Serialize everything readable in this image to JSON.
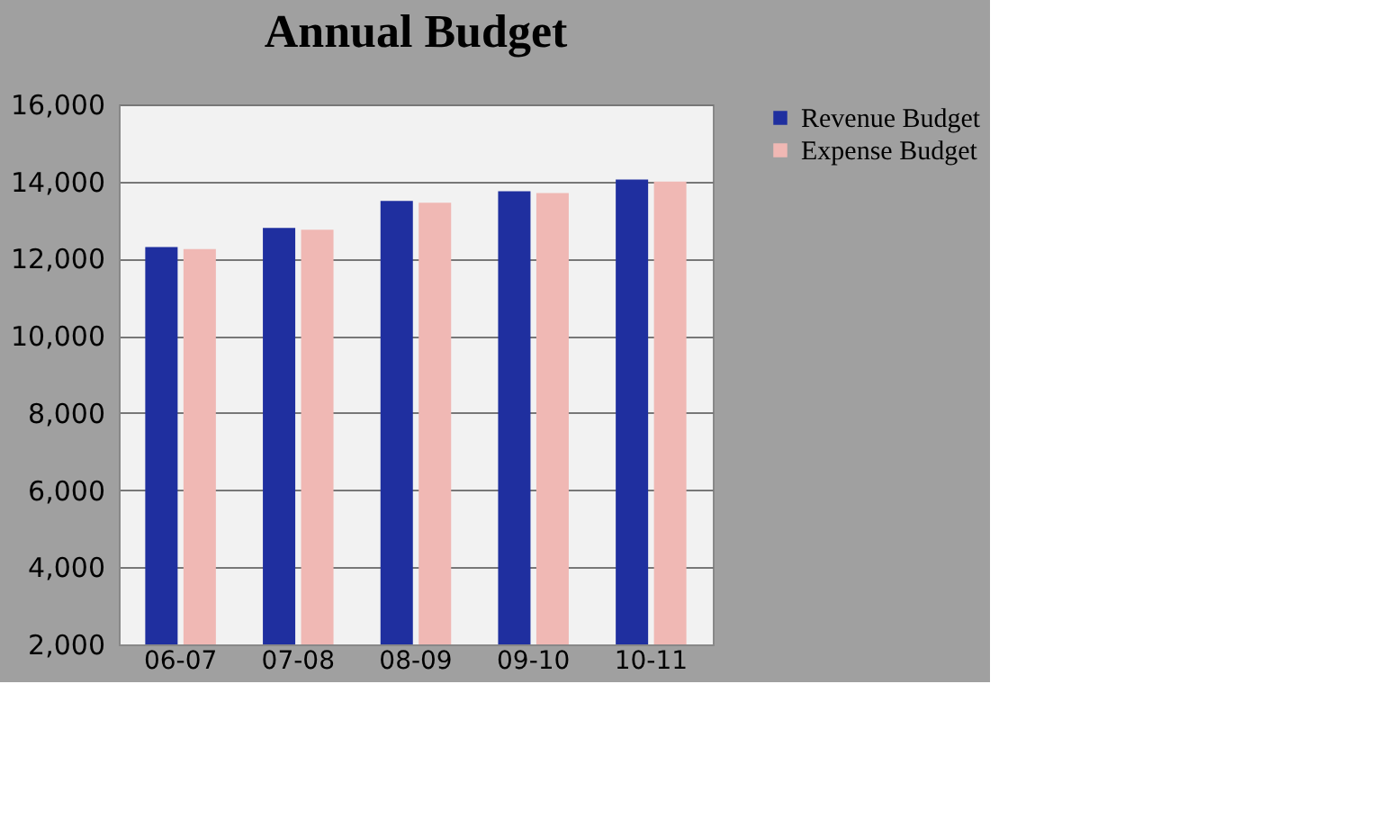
{
  "chart_data": {
    "type": "bar",
    "title": "Annual Budget",
    "categories": [
      "06-07",
      "07-08",
      "08-09",
      "09-10",
      "10-11"
    ],
    "series": [
      {
        "name": "Revenue Budget",
        "color": "#1f2f9f",
        "values": [
          12300,
          12800,
          13500,
          13750,
          14050
        ]
      },
      {
        "name": "Expense Budget",
        "color": "#f0b8b4",
        "values": [
          12250,
          12750,
          13450,
          13700,
          14000
        ]
      }
    ],
    "ylim": [
      2000,
      16000
    ],
    "yticks": [
      {
        "value": 2000,
        "label": "2,000"
      },
      {
        "value": 4000,
        "label": "4,000"
      },
      {
        "value": 6000,
        "label": "6,000"
      },
      {
        "value": 8000,
        "label": "8,000"
      },
      {
        "value": 10000,
        "label": "10,000"
      },
      {
        "value": 12000,
        "label": "12,000"
      },
      {
        "value": 14000,
        "label": "14,000"
      },
      {
        "value": 16000,
        "label": "16,000"
      }
    ],
    "grid": "y",
    "legend": "right"
  }
}
